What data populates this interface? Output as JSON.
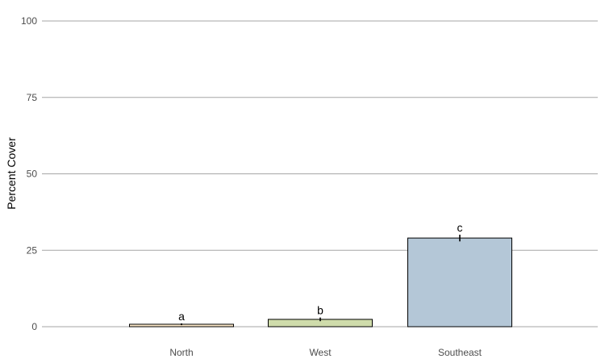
{
  "chart_data": {
    "type": "bar",
    "title": "",
    "xlabel": "",
    "ylabel": "Percent Cover",
    "ylim": [
      0,
      100
    ],
    "yticks": [
      0,
      25,
      50,
      75,
      100
    ],
    "grid": "horizontal major lines",
    "categories": [
      "North",
      "West",
      "Southeast"
    ],
    "values": [
      0.8,
      2.4,
      29.0
    ],
    "error": [
      0.3,
      0.6,
      1.1
    ],
    "significance_labels": [
      "a",
      "b",
      "c"
    ],
    "colors": [
      "#fde8c9",
      "#cfdcab",
      "#b4c7d7"
    ],
    "bar_stroke": "#000000",
    "grid_color": "#a6a6a6"
  }
}
